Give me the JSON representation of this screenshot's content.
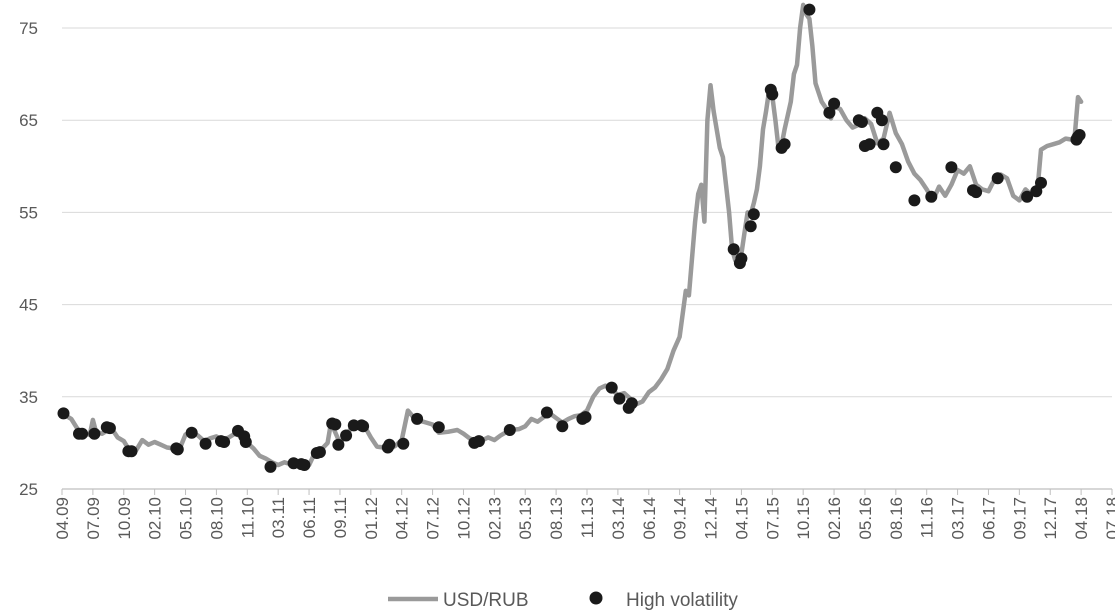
{
  "chart_data": {
    "type": "line",
    "title": "",
    "xlabel": "",
    "ylabel": "",
    "ylim": [
      25,
      78
    ],
    "yticks": [
      25,
      35,
      45,
      55,
      65,
      75
    ],
    "grid": "horizontal",
    "legend_position": "bottom-center",
    "x_categories": [
      "04.09",
      "07.09",
      "10.09",
      "02.10",
      "05.10",
      "08.10",
      "11.10",
      "03.11",
      "06.11",
      "09.11",
      "01.12",
      "04.12",
      "07.12",
      "10.12",
      "02.13",
      "05.13",
      "08.13",
      "11.13",
      "03.14",
      "06.14",
      "09.14",
      "12.14",
      "04.15",
      "07.15",
      "10.15",
      "02.16",
      "05.16",
      "08.16",
      "11.16",
      "03.17",
      "06.17",
      "09.17",
      "12.17",
      "04.18",
      "07.18"
    ],
    "series": [
      {
        "name": "USD/RUB",
        "kind": "line",
        "color": "#9a9a9a",
        "points": [
          [
            0,
            33.2
          ],
          [
            0.3,
            32.6
          ],
          [
            0.6,
            31.0
          ],
          [
            0.9,
            30.9
          ],
          [
            1.0,
            32.5
          ],
          [
            1.1,
            31.2
          ],
          [
            1.3,
            31.0
          ],
          [
            1.6,
            31.6
          ],
          [
            1.8,
            30.6
          ],
          [
            2.0,
            30.2
          ],
          [
            2.2,
            29.1
          ],
          [
            2.4,
            29.2
          ],
          [
            2.6,
            30.3
          ],
          [
            2.8,
            29.8
          ],
          [
            3.0,
            30.1
          ],
          [
            3.2,
            29.8
          ],
          [
            3.4,
            29.5
          ],
          [
            3.6,
            29.4
          ],
          [
            3.8,
            29.3
          ],
          [
            4.0,
            30.9
          ],
          [
            4.2,
            31.2
          ],
          [
            4.4,
            30.8
          ],
          [
            4.6,
            30.2
          ],
          [
            4.8,
            30.5
          ],
          [
            5.0,
            30.7
          ],
          [
            5.2,
            30.3
          ],
          [
            5.4,
            30.6
          ],
          [
            5.6,
            31.0
          ],
          [
            5.8,
            30.7
          ],
          [
            5.9,
            30.2
          ],
          [
            6.0,
            30.0
          ],
          [
            6.2,
            29.4
          ],
          [
            6.4,
            28.6
          ],
          [
            6.6,
            28.3
          ],
          [
            6.8,
            27.9
          ],
          [
            7.0,
            27.6
          ],
          [
            7.2,
            27.9
          ],
          [
            7.4,
            27.7
          ],
          [
            7.6,
            27.9
          ],
          [
            7.8,
            27.7
          ],
          [
            8.0,
            27.6
          ],
          [
            8.2,
            29.0
          ],
          [
            8.4,
            29.3
          ],
          [
            8.6,
            30.0
          ],
          [
            8.7,
            32.0
          ],
          [
            8.8,
            31.5
          ],
          [
            9.0,
            30.0
          ],
          [
            9.2,
            30.8
          ],
          [
            9.4,
            31.8
          ],
          [
            9.6,
            31.9
          ],
          [
            9.8,
            31.8
          ],
          [
            10.0,
            30.6
          ],
          [
            10.2,
            29.6
          ],
          [
            10.4,
            29.5
          ],
          [
            10.6,
            29.3
          ],
          [
            10.8,
            29.7
          ],
          [
            11.0,
            30.3
          ],
          [
            11.2,
            33.5
          ],
          [
            11.4,
            32.7
          ],
          [
            11.6,
            32.4
          ],
          [
            11.8,
            32.2
          ],
          [
            12.0,
            32.0
          ],
          [
            12.2,
            31.1
          ],
          [
            12.5,
            31.2
          ],
          [
            12.8,
            31.4
          ],
          [
            13.0,
            31.0
          ],
          [
            13.2,
            30.5
          ],
          [
            13.5,
            30.1
          ],
          [
            13.8,
            30.6
          ],
          [
            14.0,
            30.3
          ],
          [
            14.2,
            30.8
          ],
          [
            14.5,
            31.4
          ],
          [
            14.8,
            31.5
          ],
          [
            15.0,
            31.8
          ],
          [
            15.2,
            32.6
          ],
          [
            15.4,
            32.3
          ],
          [
            15.6,
            32.8
          ],
          [
            15.8,
            33.2
          ],
          [
            16.0,
            32.7
          ],
          [
            16.2,
            32.2
          ],
          [
            16.4,
            32.6
          ],
          [
            16.6,
            32.9
          ],
          [
            16.8,
            33.0
          ],
          [
            17.0,
            33.5
          ],
          [
            17.2,
            35.0
          ],
          [
            17.4,
            35.9
          ],
          [
            17.6,
            36.2
          ],
          [
            17.8,
            35.8
          ],
          [
            18.0,
            35.2
          ],
          [
            18.2,
            35.4
          ],
          [
            18.4,
            34.8
          ],
          [
            18.6,
            34.2
          ],
          [
            18.8,
            34.5
          ],
          [
            19.0,
            35.5
          ],
          [
            19.2,
            36.0
          ],
          [
            19.4,
            36.9
          ],
          [
            19.6,
            38.0
          ],
          [
            19.8,
            40.0
          ],
          [
            20.0,
            41.5
          ],
          [
            20.1,
            44.0
          ],
          [
            20.2,
            46.5
          ],
          [
            20.3,
            46.0
          ],
          [
            20.4,
            50.0
          ],
          [
            20.5,
            54.0
          ],
          [
            20.6,
            57.0
          ],
          [
            20.7,
            58.0
          ],
          [
            20.8,
            54.0
          ],
          [
            20.9,
            65.0
          ],
          [
            21.0,
            68.8
          ],
          [
            21.1,
            66.0
          ],
          [
            21.3,
            62.0
          ],
          [
            21.4,
            61.0
          ],
          [
            21.5,
            58.0
          ],
          [
            21.6,
            55.0
          ],
          [
            21.7,
            51.0
          ],
          [
            21.8,
            49.8
          ],
          [
            21.9,
            49.5
          ],
          [
            22.0,
            50.5
          ],
          [
            22.1,
            52.8
          ],
          [
            22.2,
            55.0
          ],
          [
            22.3,
            54.8
          ],
          [
            22.4,
            56.0
          ],
          [
            22.5,
            57.5
          ],
          [
            22.6,
            60.0
          ],
          [
            22.7,
            64.0
          ],
          [
            22.8,
            66.0
          ],
          [
            22.9,
            68.3
          ],
          [
            23.0,
            67.6
          ],
          [
            23.1,
            65.0
          ],
          [
            23.2,
            62.0
          ],
          [
            23.3,
            62.3
          ],
          [
            23.4,
            64.0
          ],
          [
            23.5,
            65.5
          ],
          [
            23.6,
            67.0
          ],
          [
            23.7,
            70.0
          ],
          [
            23.8,
            71.0
          ],
          [
            23.9,
            75.0
          ],
          [
            24.0,
            77.5
          ],
          [
            24.1,
            76.5
          ],
          [
            24.2,
            76.0
          ],
          [
            24.3,
            73.0
          ],
          [
            24.4,
            69.0
          ],
          [
            24.6,
            67.0
          ],
          [
            24.8,
            66.0
          ],
          [
            24.9,
            65.2
          ],
          [
            25.0,
            66.5
          ],
          [
            25.2,
            66.2
          ],
          [
            25.4,
            65.0
          ],
          [
            25.6,
            64.2
          ],
          [
            25.8,
            64.5
          ],
          [
            26.0,
            65.2
          ],
          [
            26.2,
            64.6
          ],
          [
            26.4,
            62.5
          ],
          [
            26.6,
            63.0
          ],
          [
            26.8,
            65.8
          ],
          [
            27.0,
            63.6
          ],
          [
            27.2,
            62.4
          ],
          [
            27.4,
            60.5
          ],
          [
            27.6,
            59.2
          ],
          [
            27.8,
            58.5
          ],
          [
            28.0,
            57.5
          ],
          [
            28.2,
            56.3
          ],
          [
            28.4,
            57.8
          ],
          [
            28.6,
            56.8
          ],
          [
            28.8,
            58.0
          ],
          [
            29.0,
            59.6
          ],
          [
            29.2,
            59.2
          ],
          [
            29.4,
            60.0
          ],
          [
            29.6,
            58.0
          ],
          [
            29.8,
            57.5
          ],
          [
            30.0,
            57.3
          ],
          [
            30.2,
            58.6
          ],
          [
            30.4,
            59.1
          ],
          [
            30.6,
            58.7
          ],
          [
            30.8,
            56.8
          ],
          [
            31.0,
            56.3
          ],
          [
            31.2,
            57.5
          ],
          [
            31.4,
            56.9
          ],
          [
            31.5,
            57.3
          ],
          [
            31.6,
            58.0
          ],
          [
            31.7,
            61.8
          ],
          [
            31.9,
            62.2
          ],
          [
            32.1,
            62.4
          ],
          [
            32.3,
            62.6
          ],
          [
            32.5,
            63.0
          ],
          [
            32.7,
            62.9
          ],
          [
            32.8,
            63.5
          ],
          [
            32.9,
            67.5
          ],
          [
            33.0,
            67.0
          ]
        ]
      },
      {
        "name": "High volatility",
        "kind": "scatter",
        "color": "#1a1a1a",
        "points": [
          [
            0.05,
            33.2
          ],
          [
            0.55,
            31.0
          ],
          [
            0.65,
            31.0
          ],
          [
            1.05,
            31.0
          ],
          [
            1.45,
            31.7
          ],
          [
            1.55,
            31.6
          ],
          [
            2.15,
            29.1
          ],
          [
            2.25,
            29.1
          ],
          [
            3.7,
            29.4
          ],
          [
            3.75,
            29.3
          ],
          [
            4.2,
            31.1
          ],
          [
            4.65,
            29.9
          ],
          [
            5.15,
            30.2
          ],
          [
            5.25,
            30.1
          ],
          [
            5.7,
            31.3
          ],
          [
            5.9,
            30.7
          ],
          [
            5.95,
            30.1
          ],
          [
            6.75,
            27.4
          ],
          [
            7.5,
            27.8
          ],
          [
            7.75,
            27.7
          ],
          [
            7.85,
            27.6
          ],
          [
            8.25,
            28.9
          ],
          [
            8.35,
            29.0
          ],
          [
            8.75,
            32.1
          ],
          [
            8.85,
            32.0
          ],
          [
            8.95,
            29.8
          ],
          [
            9.2,
            30.8
          ],
          [
            9.45,
            31.9
          ],
          [
            9.7,
            31.9
          ],
          [
            9.75,
            31.8
          ],
          [
            10.55,
            29.5
          ],
          [
            10.6,
            29.8
          ],
          [
            11.05,
            29.9
          ],
          [
            11.5,
            32.6
          ],
          [
            12.2,
            31.7
          ],
          [
            13.35,
            30.0
          ],
          [
            13.5,
            30.2
          ],
          [
            14.5,
            31.4
          ],
          [
            15.7,
            33.3
          ],
          [
            16.2,
            31.8
          ],
          [
            16.85,
            32.6
          ],
          [
            16.95,
            32.8
          ],
          [
            17.8,
            36.0
          ],
          [
            18.05,
            34.8
          ],
          [
            18.35,
            33.8
          ],
          [
            18.45,
            34.3
          ],
          [
            21.75,
            51.0
          ],
          [
            21.95,
            49.5
          ],
          [
            22.0,
            50.0
          ],
          [
            22.3,
            53.5
          ],
          [
            22.4,
            54.8
          ],
          [
            22.95,
            68.3
          ],
          [
            23.0,
            67.8
          ],
          [
            23.3,
            62.0
          ],
          [
            23.4,
            62.4
          ],
          [
            24.2,
            77.0
          ],
          [
            24.85,
            65.8
          ],
          [
            25.0,
            66.8
          ],
          [
            25.8,
            65.0
          ],
          [
            25.9,
            64.8
          ],
          [
            26.0,
            62.2
          ],
          [
            26.15,
            62.4
          ],
          [
            26.4,
            65.8
          ],
          [
            26.55,
            65.0
          ],
          [
            26.6,
            62.4
          ],
          [
            27.0,
            59.9
          ],
          [
            27.6,
            56.3
          ],
          [
            28.15,
            56.7
          ],
          [
            28.8,
            59.9
          ],
          [
            29.5,
            57.4
          ],
          [
            29.6,
            57.2
          ],
          [
            30.3,
            58.7
          ],
          [
            31.25,
            56.7
          ],
          [
            31.55,
            57.3
          ],
          [
            31.7,
            58.2
          ],
          [
            32.85,
            62.9
          ],
          [
            32.9,
            63.2
          ],
          [
            32.95,
            63.4
          ]
        ]
      }
    ],
    "legend": [
      {
        "label": "USD/RUB",
        "marker": "line"
      },
      {
        "label": "High volatility",
        "marker": "dot"
      }
    ]
  }
}
